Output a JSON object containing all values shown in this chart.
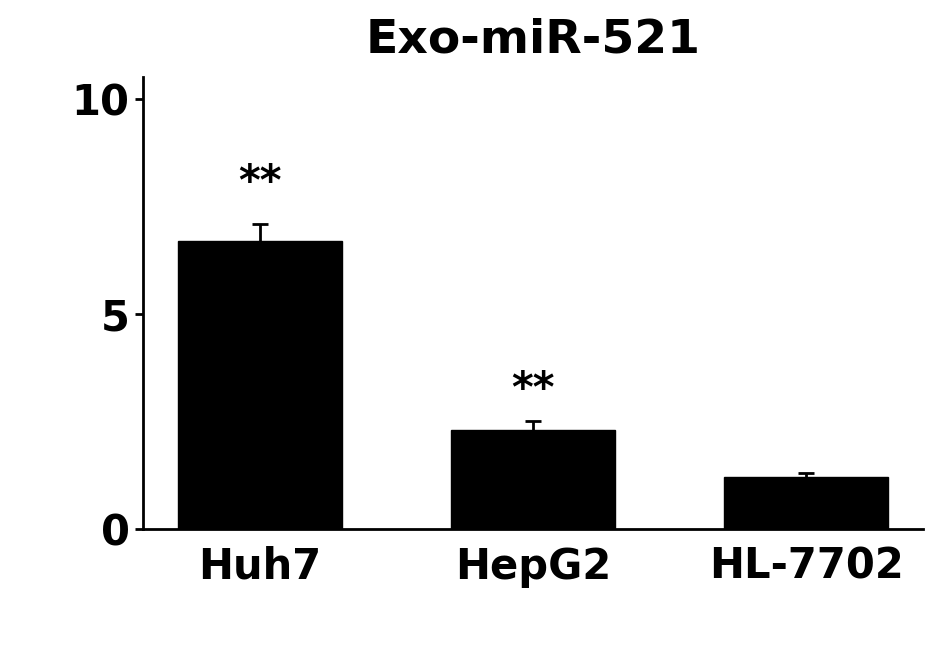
{
  "title": "Exo-miR-521",
  "categories": [
    "Huh7",
    "HepG2",
    "HL-7702"
  ],
  "values": [
    6.7,
    2.3,
    1.2
  ],
  "errors": [
    0.4,
    0.2,
    0.1
  ],
  "bar_color": "#000000",
  "background_color": "#ffffff",
  "ylim": [
    0,
    10.5
  ],
  "yticks": [
    0,
    5,
    10
  ],
  "title_fontsize": 34,
  "tick_fontsize": 30,
  "bar_width": 0.6,
  "significance": [
    "**",
    "**",
    ""
  ],
  "sig_fontsize": 30,
  "sig_offsets": [
    0.45,
    0.25,
    0.0
  ]
}
